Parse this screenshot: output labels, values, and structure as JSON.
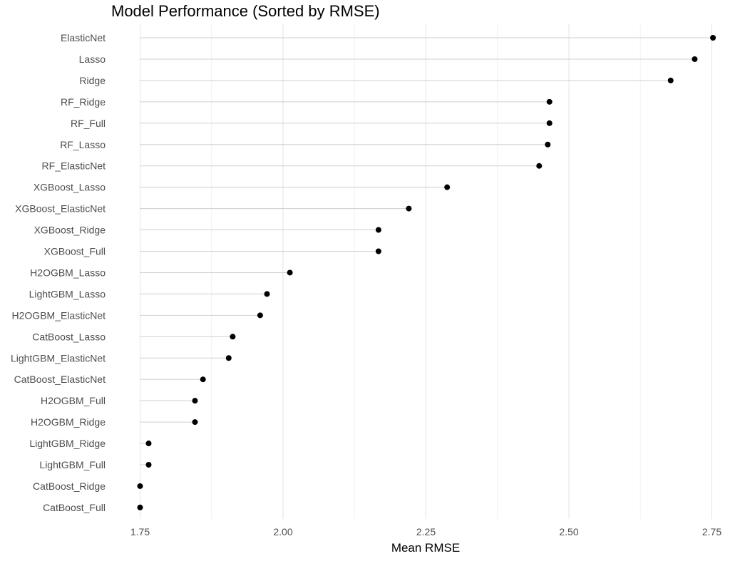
{
  "chart_data": {
    "type": "lollipop",
    "title": "Model Performance (Sorted by RMSE)",
    "xlabel": "Mean RMSE",
    "ylabel": "",
    "xlim": [
      1.75,
      2.75
    ],
    "xticks": [
      1.75,
      2.0,
      2.25,
      2.5,
      2.75
    ],
    "xtick_labels": [
      "1.75",
      "2.00",
      "2.25",
      "2.50",
      "2.75"
    ],
    "grid": true,
    "legend": "none",
    "point_color": "#000000",
    "stem_color": "#cfcfcf",
    "categories": [
      "ElasticNet",
      "Lasso",
      "Ridge",
      "RF_Ridge",
      "RF_Full",
      "RF_Lasso",
      "RF_ElasticNet",
      "XGBoost_Lasso",
      "XGBoost_ElasticNet",
      "XGBoost_Ridge",
      "XGBoost_Full",
      "H2OGBM_Lasso",
      "LightGBM_Lasso",
      "H2OGBM_ElasticNet",
      "CatBoost_Lasso",
      "LightGBM_ElasticNet",
      "CatBoost_ElasticNet",
      "H2OGBM_Full",
      "H2OGBM_Ridge",
      "LightGBM_Ridge",
      "LightGBM_Full",
      "CatBoost_Ridge",
      "CatBoost_Full"
    ],
    "values": [
      2.752,
      2.72,
      2.678,
      2.466,
      2.466,
      2.463,
      2.448,
      2.287,
      2.22,
      2.167,
      2.167,
      2.012,
      1.972,
      1.96,
      1.912,
      1.905,
      1.86,
      1.846,
      1.846,
      1.765,
      1.765,
      1.75,
      1.75
    ]
  }
}
